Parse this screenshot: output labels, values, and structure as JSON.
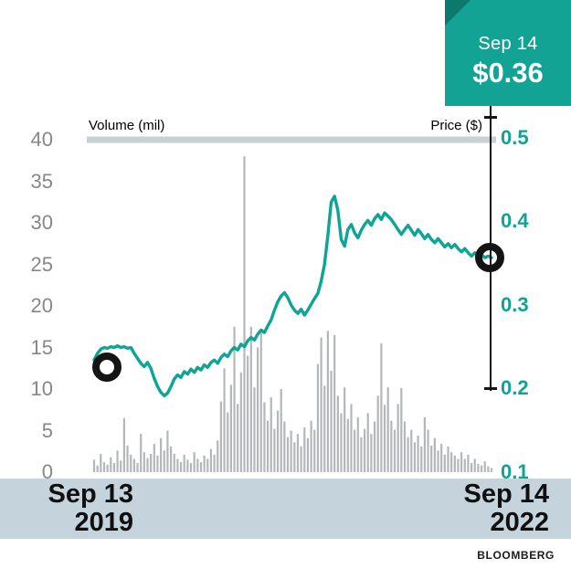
{
  "callout": {
    "date": "Sep 14",
    "price": "$0.36"
  },
  "axes": {
    "left_title": "Volume (mil)",
    "right_title": "Price ($)",
    "left_ticks": [
      "40",
      "35",
      "30",
      "25",
      "20",
      "15",
      "10",
      "5",
      "0"
    ],
    "right_ticks": [
      "0.5",
      "0.4",
      "0.3",
      "0.2",
      "0.1"
    ]
  },
  "x_axis": {
    "start_line1": "Sep 13",
    "start_line2": "2019",
    "end_line1": "Sep 14",
    "end_line2": "2022"
  },
  "source": "BLOOMBERG",
  "colors": {
    "teal": "#13a394",
    "teal_dark": "#0b7a6d",
    "line": "#0ea496",
    "bar": "#b4b7b9",
    "gridline": "#c9cfd3",
    "axis_gray": "#85878a",
    "band": "#c5d4dc",
    "marker": "#141414"
  },
  "chart_data": {
    "type": "line",
    "title": "",
    "x_range": {
      "start": "Sep 13 2019",
      "end": "Sep 14 2022"
    },
    "left_axis": {
      "title": "Volume (mil)",
      "min": 0,
      "max": 40,
      "ticks": [
        40,
        35,
        30,
        25,
        20,
        15,
        10,
        5,
        0
      ]
    },
    "right_axis": {
      "title": "Price ($)",
      "min": 0.1,
      "max": 0.5,
      "ticks": [
        0.5,
        0.4,
        0.3,
        0.2,
        0.1
      ]
    },
    "legend": "none",
    "grid": "single thick top gridline at 40 / 0.5",
    "series": [
      {
        "name": "Price",
        "type": "line",
        "axis": "right",
        "color": "#0ea496",
        "values": [
          0.235,
          0.243,
          0.248,
          0.25,
          0.249,
          0.251,
          0.25,
          0.252,
          0.25,
          0.251,
          0.249,
          0.25,
          0.243,
          0.237,
          0.231,
          0.227,
          0.232,
          0.225,
          0.213,
          0.203,
          0.196,
          0.192,
          0.195,
          0.203,
          0.212,
          0.217,
          0.214,
          0.221,
          0.218,
          0.224,
          0.22,
          0.226,
          0.223,
          0.229,
          0.226,
          0.232,
          0.235,
          0.231,
          0.238,
          0.242,
          0.239,
          0.246,
          0.25,
          0.247,
          0.254,
          0.251,
          0.258,
          0.262,
          0.259,
          0.266,
          0.271,
          0.268,
          0.276,
          0.283,
          0.295,
          0.305,
          0.312,
          0.316,
          0.31,
          0.301,
          0.295,
          0.291,
          0.296,
          0.289,
          0.295,
          0.302,
          0.309,
          0.315,
          0.33,
          0.35,
          0.385,
          0.425,
          0.432,
          0.415,
          0.38,
          0.372,
          0.392,
          0.398,
          0.388,
          0.382,
          0.391,
          0.398,
          0.403,
          0.397,
          0.405,
          0.41,
          0.404,
          0.412,
          0.408,
          0.404,
          0.398,
          0.392,
          0.386,
          0.392,
          0.397,
          0.391,
          0.385,
          0.392,
          0.387,
          0.381,
          0.386,
          0.38,
          0.376,
          0.381,
          0.376,
          0.371,
          0.375,
          0.37,
          0.374,
          0.369,
          0.365,
          0.369,
          0.364,
          0.36,
          0.364,
          0.359,
          0.362,
          0.358,
          0.36,
          0.358
        ]
      },
      {
        "name": "Volume",
        "type": "bar",
        "axis": "left",
        "color": "#b4b7b9",
        "values": [
          1.5,
          0.8,
          2.2,
          1.2,
          0.9,
          1.8,
          1.1,
          2.6,
          1.4,
          6.5,
          3.2,
          2.1,
          1.6,
          1.1,
          4.6,
          2.4,
          1.7,
          2.2,
          3.4,
          2,
          4.1,
          2.6,
          5,
          3.1,
          2.2,
          1.6,
          1.2,
          2.1,
          1.5,
          1.1,
          2.4,
          1.6,
          1.2,
          2,
          1.6,
          2.8,
          2.1,
          3.8,
          8.5,
          12.5,
          7.2,
          10.5,
          17.5,
          8.2,
          12,
          38,
          14,
          17.5,
          10.2,
          15,
          17.2,
          8.4,
          6.2,
          9,
          5.2,
          7.4,
          10,
          6.1,
          4.2,
          5,
          3.6,
          4.6,
          3.1,
          5.4,
          4.1,
          6.2,
          5.1,
          13,
          16.2,
          10.4,
          17,
          12.2,
          16.5,
          9.2,
          7.1,
          10.2,
          6.4,
          8.2,
          5.1,
          6.6,
          4.2,
          5.2,
          7.1,
          4.6,
          6.1,
          9.2,
          15.5,
          8.1,
          10.2,
          6.2,
          5.1,
          8.2,
          10.1,
          6.1,
          4.2,
          5.1,
          3.6,
          4.4,
          3.1,
          6.6,
          5.1,
          3.2,
          4.1,
          2.6,
          3.4,
          2.1,
          3.1,
          2.4,
          2,
          1.6,
          2.4,
          1.6,
          2.1,
          1.1,
          1.6,
          1,
          0.8,
          1.3,
          0.7,
          0.5
        ]
      }
    ],
    "markers": [
      {
        "position": "start",
        "date": "Sep 13 2019",
        "approx_price": 0.24
      },
      {
        "position": "end",
        "date": "Sep 14 2022",
        "approx_price": 0.36
      }
    ],
    "callout": {
      "date": "Sep 14",
      "price": "$0.36"
    },
    "source": "BLOOMBERG"
  }
}
